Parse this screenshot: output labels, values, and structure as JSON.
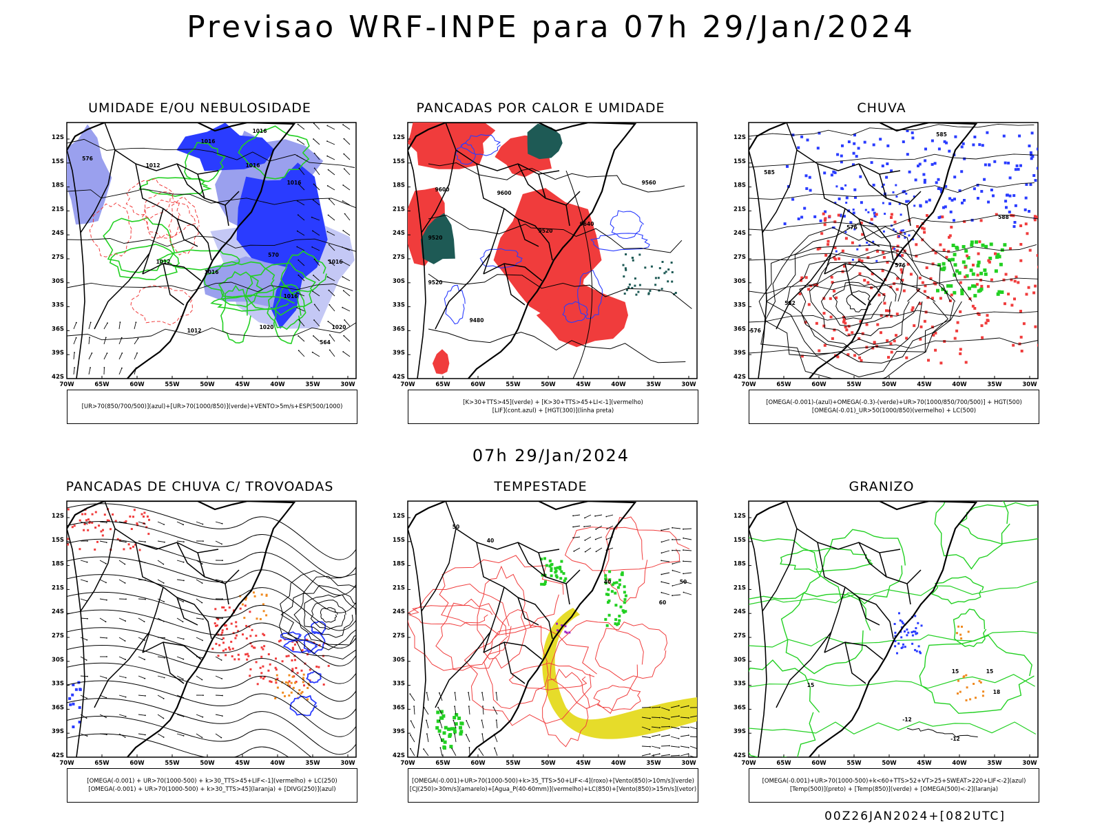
{
  "header": {
    "title": "Previsao WRF-INPE  para 07h 29/Jan/2024"
  },
  "mid_title": "07h 29/Jan/2024",
  "footer": "00Z26JAN2024+[082UTC]",
  "axes": {
    "lat_labels": [
      "12S",
      "15S",
      "18S",
      "21S",
      "24S",
      "27S",
      "30S",
      "33S",
      "36S",
      "39S",
      "42S"
    ],
    "lon_labels": [
      "70W",
      "65W",
      "60W",
      "55W",
      "50W",
      "45W",
      "40W",
      "35W",
      "30W"
    ]
  },
  "panels": [
    {
      "title": "UMIDADE E/OU NEBULOSIDADE",
      "legend": [
        "[UR>70(850/700/500)](azul)+[UR>70(1000/850)](verde)+VENTO>5m/s+ESP(500/1000)"
      ],
      "labels": [
        "1016",
        "1016",
        "1016",
        "1016",
        "1012",
        "1012",
        "1016",
        "1016",
        "1020",
        "1016",
        "1020",
        "1012",
        "576",
        "570",
        "564"
      ]
    },
    {
      "title": "PANCADAS POR CALOR E UMIDADE",
      "legend": [
        "[K>30+TTS>45](verde) + [K>30+TTS>45+LI<-1](vermelho)",
        "[LIF](cont.azul) + [HGT(300)](linha preta)"
      ],
      "labels": [
        "9600",
        "9600",
        "9560",
        "9520",
        "9520",
        "9520",
        "9480",
        "9640"
      ]
    },
    {
      "title": "CHUVA",
      "legend": [
        "[OMEGA(-0.001)-(azul)+OMEGA(-0.3)-(verde)+UR>70(1000/850/700/500)] + HGT(500)",
        "[OMEGA(-0.01)_UR>50(1000/850)(vermelho) + LC(500)"
      ],
      "labels": [
        "585",
        "576",
        "582",
        "576",
        "588",
        "585",
        "576"
      ]
    },
    {
      "title": "PANCADAS DE CHUVA C/ TROVOADAS",
      "legend": [
        "[OMEGA(-0.001) + UR>70(1000-500) + k>30_TTS>45+LIF<-1](vermelho) + LC(250)",
        "[OMEGA(-0.001) + UR>70(1000-500) + k>30_TTS>45](laranja) + [DIVG(250)](azul)"
      ],
      "labels": []
    },
    {
      "title": "TEMPESTADE",
      "legend": [
        "[OMEGA(-0.001)+UR>70(1000-500)+k>35_TTS>50+LIF<-4](roxo)+[Vento(850)>10m/s](verde)",
        "[CJ(250)>30m/s](amarelo)+[Agua_P(40-60mm)](vermelho)+LC(850)+[Vento(850)>15m/s](vetor)"
      ],
      "labels": [
        "40",
        "50",
        "40",
        "50",
        "60"
      ]
    },
    {
      "title": "GRANIZO",
      "legend": [
        "[OMEGA(-0.001)+UR>70(1000-500)+k<60+TTS>52+VT>25+SWEAT>220+LIF<-2](azul)",
        "[Temp(500)](preto) + [Temp(850)](verde) + [OMEGA(500)<-2](laranja)"
      ],
      "labels": [
        "-12",
        "-12",
        "15",
        "15",
        "15",
        "18"
      ]
    }
  ],
  "colors": {
    "blue": "#2a3cff",
    "lightblue": "#9aa0ee",
    "paleblue": "#c4c8f5",
    "green": "#22d022",
    "red": "#f03c3c",
    "darkteal": "#1e5a55",
    "orange": "#f08a20",
    "yellow": "#e6dc2a",
    "purple": "#a020c0"
  }
}
